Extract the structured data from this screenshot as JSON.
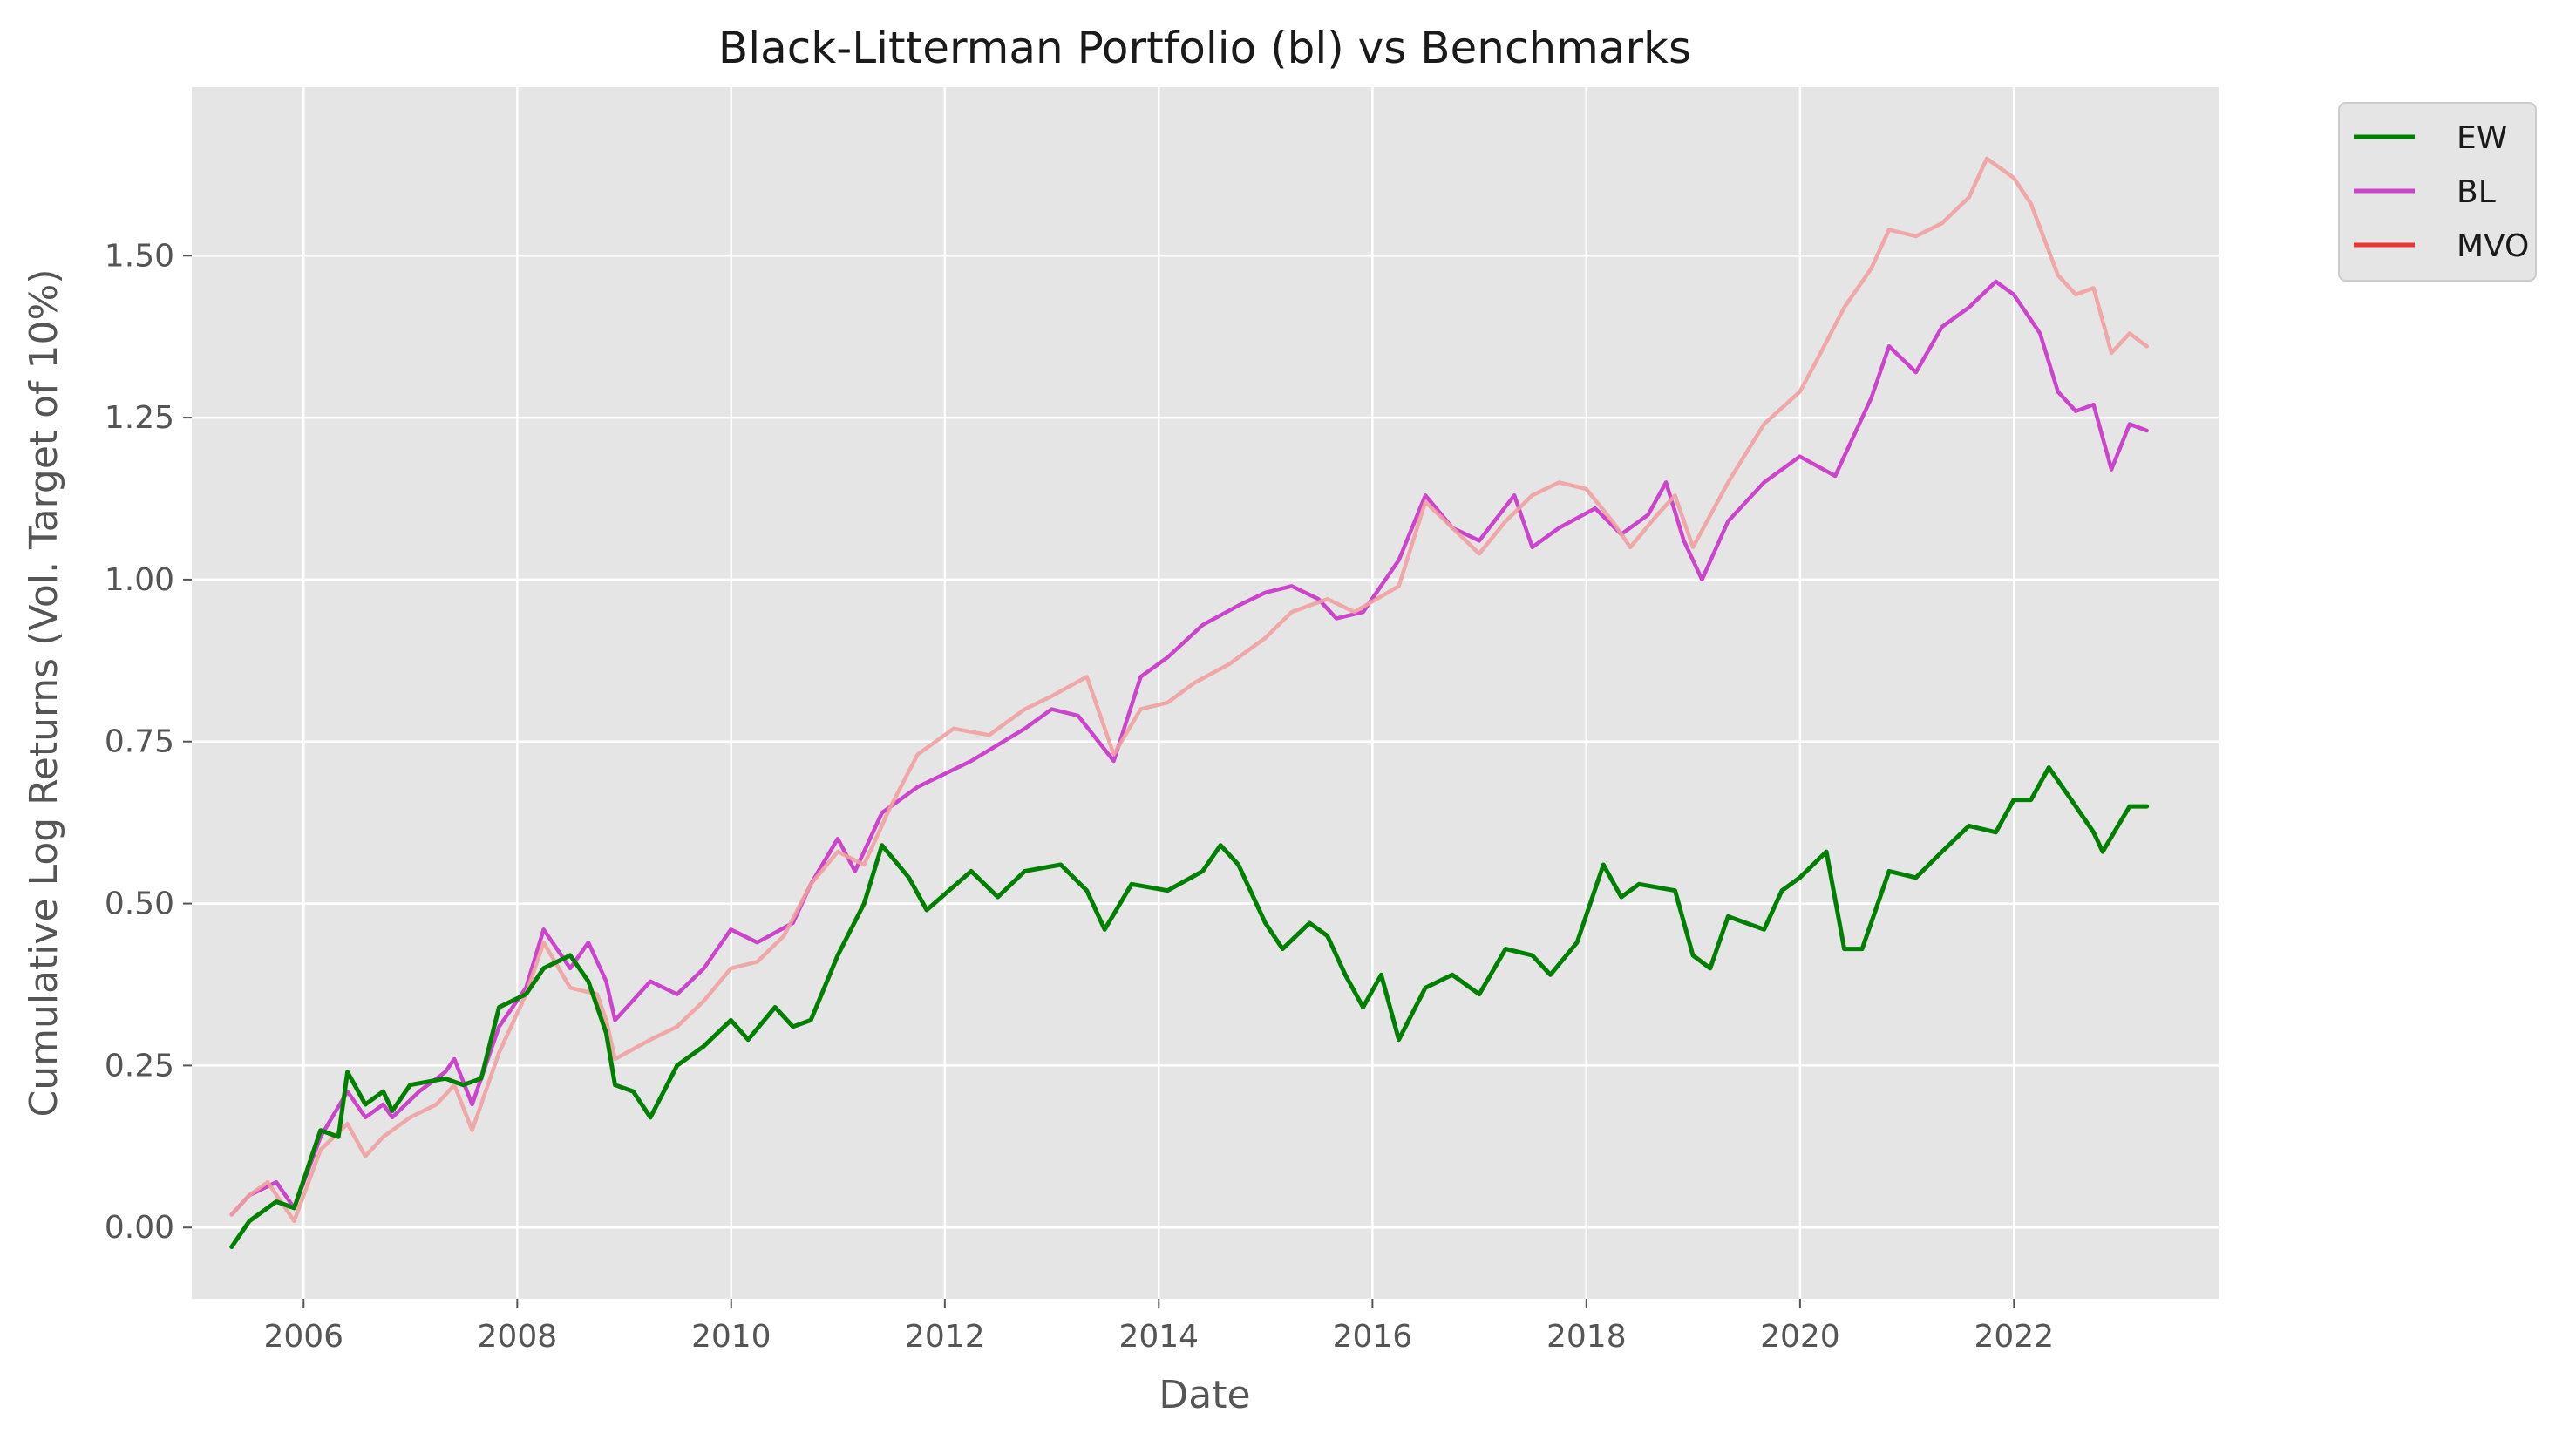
{
  "chart_data": {
    "type": "line",
    "title": "Black-Litterman Portfolio (bl) vs Benchmarks",
    "xlabel": "Date",
    "ylabel": "Cumulative Log Returns (Vol. Target of 10%)",
    "xlim": [
      "2004-12-15",
      "2023-12-01"
    ],
    "ylim": [
      -0.11,
      1.76
    ],
    "x_ticks": [
      "2006",
      "2008",
      "2010",
      "2012",
      "2014",
      "2016",
      "2018",
      "2020",
      "2022"
    ],
    "y_ticks": [
      "0.00",
      "0.25",
      "0.50",
      "0.75",
      "1.00",
      "1.25",
      "1.50"
    ],
    "grid": true,
    "legend_position": "outside-top-right",
    "legend": [
      "EW",
      "BL",
      "MVO"
    ],
    "colors": {
      "EW": "#008000",
      "BL": "#cc44cc",
      "MVO": "#ee3333",
      "MVO_line": "#f0a0a0",
      "BL_overlap": "#dd4477",
      "background": "#e5e5e5",
      "grid": "#ffffff"
    },
    "series": [
      {
        "name": "EW",
        "points": [
          [
            "2005-04-30",
            -0.03
          ],
          [
            "2005-06-30",
            0.01
          ],
          [
            "2005-09-30",
            0.04
          ],
          [
            "2005-11-30",
            0.03
          ],
          [
            "2006-02-28",
            0.15
          ],
          [
            "2006-04-30",
            0.14
          ],
          [
            "2006-05-31",
            0.24
          ],
          [
            "2006-07-31",
            0.19
          ],
          [
            "2006-09-30",
            0.21
          ],
          [
            "2006-10-31",
            0.18
          ],
          [
            "2006-12-31",
            0.22
          ],
          [
            "2007-04-30",
            0.23
          ],
          [
            "2007-06-30",
            0.22
          ],
          [
            "2007-08-31",
            0.23
          ],
          [
            "2007-10-31",
            0.34
          ],
          [
            "2008-01-31",
            0.36
          ],
          [
            "2008-03-31",
            0.4
          ],
          [
            "2008-06-30",
            0.42
          ],
          [
            "2008-08-31",
            0.38
          ],
          [
            "2008-10-31",
            0.3
          ],
          [
            "2008-11-30",
            0.22
          ],
          [
            "2009-01-31",
            0.21
          ],
          [
            "2009-03-31",
            0.17
          ],
          [
            "2009-06-30",
            0.25
          ],
          [
            "2009-09-30",
            0.28
          ],
          [
            "2009-12-31",
            0.32
          ],
          [
            "2010-02-28",
            0.29
          ],
          [
            "2010-05-31",
            0.34
          ],
          [
            "2010-07-31",
            0.31
          ],
          [
            "2010-09-30",
            0.32
          ],
          [
            "2010-12-31",
            0.42
          ],
          [
            "2011-03-31",
            0.5
          ],
          [
            "2011-05-31",
            0.59
          ],
          [
            "2011-08-31",
            0.54
          ],
          [
            "2011-10-31",
            0.49
          ],
          [
            "2012-03-31",
            0.55
          ],
          [
            "2012-06-30",
            0.51
          ],
          [
            "2012-09-30",
            0.55
          ],
          [
            "2013-01-31",
            0.56
          ],
          [
            "2013-04-30",
            0.52
          ],
          [
            "2013-06-30",
            0.46
          ],
          [
            "2013-09-30",
            0.53
          ],
          [
            "2014-01-31",
            0.52
          ],
          [
            "2014-05-31",
            0.55
          ],
          [
            "2014-07-31",
            0.59
          ],
          [
            "2014-09-30",
            0.56
          ],
          [
            "2014-12-31",
            0.47
          ],
          [
            "2015-02-28",
            0.43
          ],
          [
            "2015-05-31",
            0.47
          ],
          [
            "2015-07-31",
            0.45
          ],
          [
            "2015-09-30",
            0.39
          ],
          [
            "2015-11-30",
            0.34
          ],
          [
            "2016-01-31",
            0.39
          ],
          [
            "2016-03-31",
            0.29
          ],
          [
            "2016-06-30",
            0.37
          ],
          [
            "2016-09-30",
            0.39
          ],
          [
            "2016-12-31",
            0.36
          ],
          [
            "2017-03-31",
            0.43
          ],
          [
            "2017-06-30",
            0.42
          ],
          [
            "2017-08-31",
            0.39
          ],
          [
            "2017-11-30",
            0.44
          ],
          [
            "2018-02-28",
            0.56
          ],
          [
            "2018-04-30",
            0.51
          ],
          [
            "2018-06-30",
            0.53
          ],
          [
            "2018-10-31",
            0.52
          ],
          [
            "2018-12-31",
            0.42
          ],
          [
            "2019-02-28",
            0.4
          ],
          [
            "2019-04-30",
            0.48
          ],
          [
            "2019-08-31",
            0.46
          ],
          [
            "2019-10-31",
            0.52
          ],
          [
            "2019-12-31",
            0.54
          ],
          [
            "2020-03-31",
            0.58
          ],
          [
            "2020-05-31",
            0.43
          ],
          [
            "2020-07-31",
            0.43
          ],
          [
            "2020-10-31",
            0.55
          ],
          [
            "2021-01-31",
            0.54
          ],
          [
            "2021-04-30",
            0.58
          ],
          [
            "2021-07-31",
            0.62
          ],
          [
            "2021-10-31",
            0.61
          ],
          [
            "2021-12-31",
            0.66
          ],
          [
            "2022-02-28",
            0.66
          ],
          [
            "2022-04-30",
            0.71
          ],
          [
            "2022-07-31",
            0.65
          ],
          [
            "2022-09-30",
            0.61
          ],
          [
            "2022-10-31",
            0.58
          ],
          [
            "2023-01-31",
            0.65
          ],
          [
            "2023-03-31",
            0.65
          ]
        ]
      },
      {
        "name": "BL",
        "points": [
          [
            "2005-04-30",
            0.02
          ],
          [
            "2005-06-30",
            0.05
          ],
          [
            "2005-09-30",
            0.07
          ],
          [
            "2005-11-30",
            0.03
          ],
          [
            "2006-02-28",
            0.14
          ],
          [
            "2006-05-31",
            0.21
          ],
          [
            "2006-07-31",
            0.17
          ],
          [
            "2006-09-30",
            0.19
          ],
          [
            "2006-10-31",
            0.17
          ],
          [
            "2007-01-31",
            0.21
          ],
          [
            "2007-04-30",
            0.24
          ],
          [
            "2007-05-31",
            0.26
          ],
          [
            "2007-07-31",
            0.19
          ],
          [
            "2007-10-31",
            0.31
          ],
          [
            "2008-01-31",
            0.37
          ],
          [
            "2008-03-31",
            0.46
          ],
          [
            "2008-06-30",
            0.4
          ],
          [
            "2008-08-31",
            0.44
          ],
          [
            "2008-10-31",
            0.38
          ],
          [
            "2008-11-30",
            0.32
          ],
          [
            "2009-03-31",
            0.38
          ],
          [
            "2009-06-30",
            0.36
          ],
          [
            "2009-09-30",
            0.4
          ],
          [
            "2009-12-31",
            0.46
          ],
          [
            "2010-03-31",
            0.44
          ],
          [
            "2010-07-31",
            0.47
          ],
          [
            "2010-09-30",
            0.53
          ],
          [
            "2010-12-31",
            0.6
          ],
          [
            "2011-02-28",
            0.55
          ],
          [
            "2011-05-31",
            0.64
          ],
          [
            "2011-09-30",
            0.68
          ],
          [
            "2011-12-31",
            0.7
          ],
          [
            "2012-03-31",
            0.72
          ],
          [
            "2012-09-30",
            0.77
          ],
          [
            "2012-12-31",
            0.8
          ],
          [
            "2013-03-31",
            0.79
          ],
          [
            "2013-07-31",
            0.72
          ],
          [
            "2013-10-31",
            0.85
          ],
          [
            "2014-01-31",
            0.88
          ],
          [
            "2014-05-31",
            0.93
          ],
          [
            "2014-09-30",
            0.96
          ],
          [
            "2014-12-31",
            0.98
          ],
          [
            "2015-03-31",
            0.99
          ],
          [
            "2015-06-30",
            0.97
          ],
          [
            "2015-08-31",
            0.94
          ],
          [
            "2015-11-30",
            0.95
          ],
          [
            "2016-03-31",
            1.03
          ],
          [
            "2016-06-30",
            1.13
          ],
          [
            "2016-09-30",
            1.08
          ],
          [
            "2016-12-31",
            1.06
          ],
          [
            "2017-04-30",
            1.13
          ],
          [
            "2017-06-30",
            1.05
          ],
          [
            "2017-09-30",
            1.08
          ],
          [
            "2018-01-31",
            1.11
          ],
          [
            "2018-04-30",
            1.07
          ],
          [
            "2018-07-31",
            1.1
          ],
          [
            "2018-09-30",
            1.15
          ],
          [
            "2018-11-30",
            1.06
          ],
          [
            "2019-01-31",
            1.0
          ],
          [
            "2019-04-30",
            1.09
          ],
          [
            "2019-08-31",
            1.15
          ],
          [
            "2019-12-31",
            1.19
          ],
          [
            "2020-04-30",
            1.16
          ],
          [
            "2020-08-31",
            1.28
          ],
          [
            "2020-10-31",
            1.36
          ],
          [
            "2021-01-31",
            1.32
          ],
          [
            "2021-04-30",
            1.39
          ],
          [
            "2021-07-31",
            1.42
          ],
          [
            "2021-10-31",
            1.46
          ],
          [
            "2021-12-31",
            1.44
          ],
          [
            "2022-03-31",
            1.38
          ],
          [
            "2022-05-31",
            1.29
          ],
          [
            "2022-07-31",
            1.26
          ],
          [
            "2022-09-30",
            1.27
          ],
          [
            "2022-11-30",
            1.17
          ],
          [
            "2023-01-31",
            1.24
          ],
          [
            "2023-03-31",
            1.23
          ]
        ]
      },
      {
        "name": "MVO",
        "points": [
          [
            "2005-04-30",
            0.02
          ],
          [
            "2005-06-30",
            0.05
          ],
          [
            "2005-08-31",
            0.07
          ],
          [
            "2005-11-30",
            0.01
          ],
          [
            "2006-02-28",
            0.12
          ],
          [
            "2006-05-31",
            0.16
          ],
          [
            "2006-07-31",
            0.11
          ],
          [
            "2006-09-30",
            0.14
          ],
          [
            "2006-12-31",
            0.17
          ],
          [
            "2007-03-31",
            0.19
          ],
          [
            "2007-05-31",
            0.22
          ],
          [
            "2007-07-31",
            0.15
          ],
          [
            "2007-10-31",
            0.27
          ],
          [
            "2008-01-31",
            0.36
          ],
          [
            "2008-03-31",
            0.44
          ],
          [
            "2008-06-30",
            0.37
          ],
          [
            "2008-09-30",
            0.36
          ],
          [
            "2008-10-31",
            0.32
          ],
          [
            "2008-11-30",
            0.26
          ],
          [
            "2009-03-31",
            0.29
          ],
          [
            "2009-06-30",
            0.31
          ],
          [
            "2009-09-30",
            0.35
          ],
          [
            "2009-12-31",
            0.4
          ],
          [
            "2010-03-31",
            0.41
          ],
          [
            "2010-06-30",
            0.45
          ],
          [
            "2010-09-30",
            0.53
          ],
          [
            "2010-12-31",
            0.58
          ],
          [
            "2011-03-31",
            0.56
          ],
          [
            "2011-06-30",
            0.65
          ],
          [
            "2011-09-30",
            0.73
          ],
          [
            "2012-01-31",
            0.77
          ],
          [
            "2012-05-31",
            0.76
          ],
          [
            "2012-09-30",
            0.8
          ],
          [
            "2012-12-31",
            0.82
          ],
          [
            "2013-04-30",
            0.85
          ],
          [
            "2013-07-31",
            0.73
          ],
          [
            "2013-10-31",
            0.8
          ],
          [
            "2014-01-31",
            0.81
          ],
          [
            "2014-04-30",
            0.84
          ],
          [
            "2014-08-31",
            0.87
          ],
          [
            "2014-12-31",
            0.91
          ],
          [
            "2015-03-31",
            0.95
          ],
          [
            "2015-07-31",
            0.97
          ],
          [
            "2015-10-31",
            0.95
          ],
          [
            "2016-03-31",
            0.99
          ],
          [
            "2016-06-30",
            1.12
          ],
          [
            "2016-09-30",
            1.08
          ],
          [
            "2016-12-31",
            1.04
          ],
          [
            "2017-03-31",
            1.09
          ],
          [
            "2017-06-30",
            1.13
          ],
          [
            "2017-09-30",
            1.15
          ],
          [
            "2017-12-31",
            1.14
          ],
          [
            "2018-03-31",
            1.09
          ],
          [
            "2018-05-31",
            1.05
          ],
          [
            "2018-08-31",
            1.1
          ],
          [
            "2018-10-31",
            1.13
          ],
          [
            "2018-12-31",
            1.05
          ],
          [
            "2019-04-30",
            1.15
          ],
          [
            "2019-08-31",
            1.24
          ],
          [
            "2019-12-31",
            1.29
          ],
          [
            "2020-02-29",
            1.34
          ],
          [
            "2020-05-31",
            1.42
          ],
          [
            "2020-08-31",
            1.48
          ],
          [
            "2020-10-31",
            1.54
          ],
          [
            "2021-01-31",
            1.53
          ],
          [
            "2021-04-30",
            1.55
          ],
          [
            "2021-07-31",
            1.59
          ],
          [
            "2021-09-30",
            1.65
          ],
          [
            "2021-12-31",
            1.62
          ],
          [
            "2022-02-28",
            1.58
          ],
          [
            "2022-05-31",
            1.47
          ],
          [
            "2022-07-31",
            1.44
          ],
          [
            "2022-09-30",
            1.45
          ],
          [
            "2022-11-30",
            1.35
          ],
          [
            "2023-01-31",
            1.38
          ],
          [
            "2023-03-31",
            1.36
          ]
        ]
      }
    ]
  }
}
